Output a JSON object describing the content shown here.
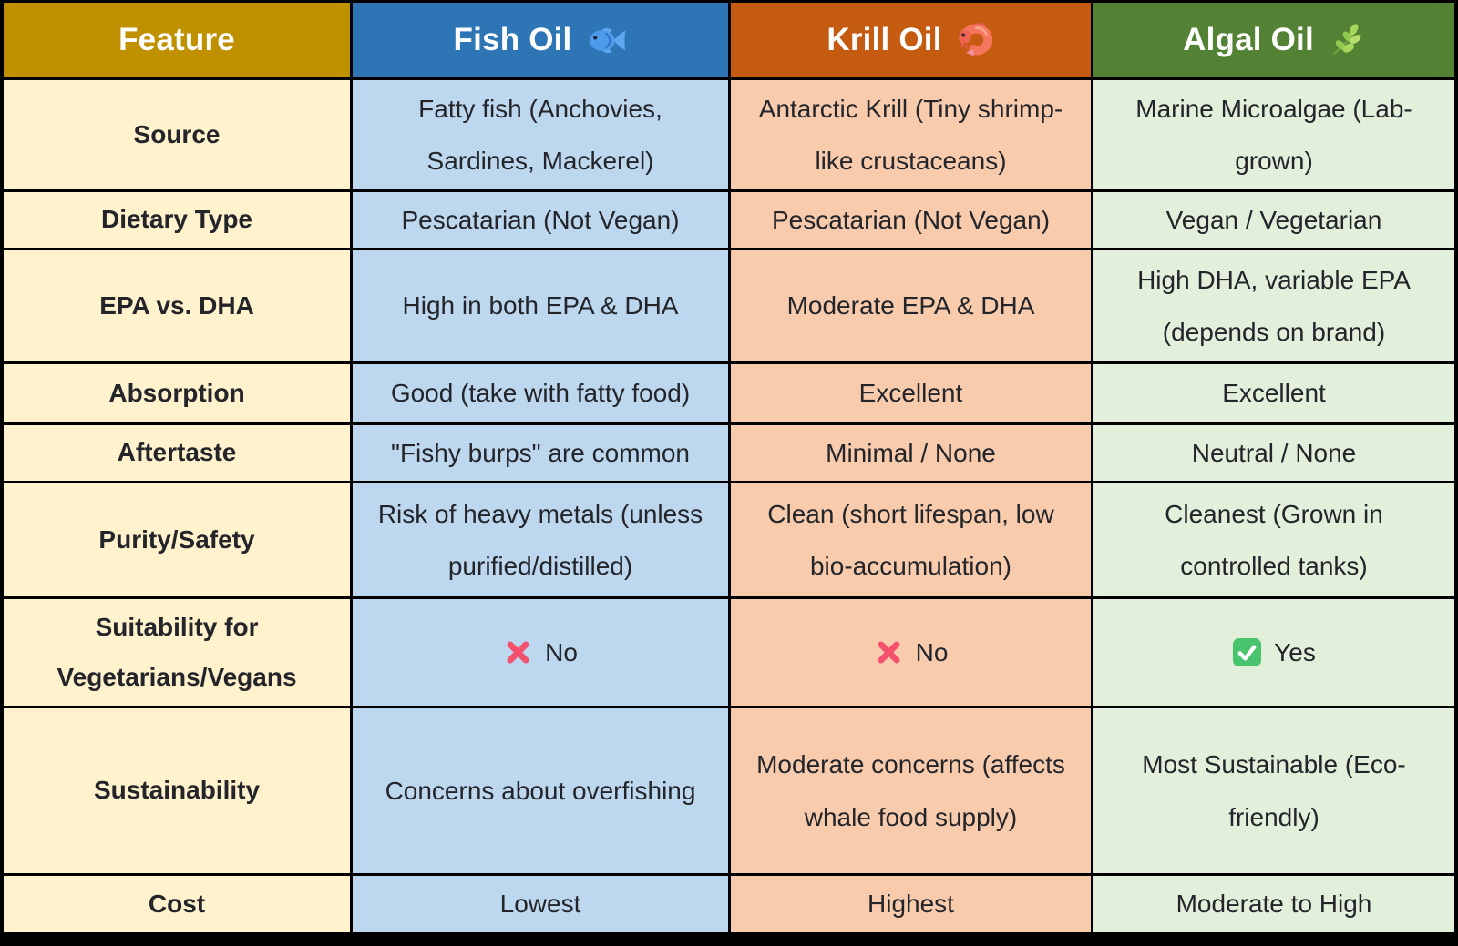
{
  "chart_data": {
    "type": "table",
    "columns": [
      {
        "id": "feature",
        "label": "Feature",
        "icon": null,
        "header_bg": "#BF9000",
        "cell_bg": "#FFF2CC"
      },
      {
        "id": "fish-oil",
        "label": "Fish Oil",
        "icon": "fish-icon",
        "header_bg": "#2E75B6",
        "cell_bg": "#BDD7EE"
      },
      {
        "id": "krill-oil",
        "label": "Krill Oil",
        "icon": "shrimp-icon",
        "header_bg": "#C55A11",
        "cell_bg": "#F8CBAD"
      },
      {
        "id": "algal-oil",
        "label": "Algal Oil",
        "icon": "herb-icon",
        "header_bg": "#548235",
        "cell_bg": "#E2EFDA"
      }
    ],
    "rows": [
      {
        "id": "source",
        "cells": [
          "Source",
          "Fatty fish (Anchovies, Sardines, Mackerel)",
          "Antarctic Krill (Tiny shrimp-like crustaceans)",
          "Marine Microalgae (Lab-grown)"
        ]
      },
      {
        "id": "dietary-type",
        "cells": [
          "Dietary Type",
          "Pescatarian (Not Vegan)",
          "Pescatarian (Not Vegan)",
          "Vegan / Vegetarian"
        ]
      },
      {
        "id": "epa-vs-dha",
        "cells": [
          "EPA vs. DHA",
          "High in both EPA & DHA",
          "Moderate EPA & DHA",
          "High DHA, variable EPA (depends on brand)"
        ]
      },
      {
        "id": "absorption",
        "cells": [
          "Absorption",
          "Good (take with fatty food)",
          "Excellent",
          "Excellent"
        ]
      },
      {
        "id": "aftertaste",
        "cells": [
          "Aftertaste",
          "\"Fishy burps\" are common",
          "Minimal / None",
          "Neutral / None"
        ]
      },
      {
        "id": "purity-safety",
        "cells": [
          "Purity/Safety",
          "Risk of heavy metals (unless purified/distilled)",
          "Clean (short lifespan, low bio-accumulation)",
          "Cleanest (Grown in controlled tanks)"
        ]
      },
      {
        "id": "suitability",
        "cells": [
          "Suitability for Vegetarians/Vegans",
          {
            "icon": "cross-mark-icon",
            "text": "No"
          },
          {
            "icon": "cross-mark-icon",
            "text": "No"
          },
          {
            "icon": "check-mark-icon",
            "text": "Yes"
          }
        ]
      },
      {
        "id": "sustainability",
        "cells": [
          "Sustainability",
          "Concerns about overfishing",
          "Moderate concerns (affects whale food supply)",
          "Most Sustainable (Eco-friendly)"
        ]
      },
      {
        "id": "cost",
        "cells": [
          "Cost",
          "Lowest",
          "Highest",
          "Moderate to High"
        ]
      }
    ],
    "status_colors": {
      "cross": "#F4516F",
      "check": "#48C46E"
    },
    "icon_colors": {
      "fish": "#4D9BEB",
      "shrimp": "#F4765C",
      "herb": "#8FC94E"
    },
    "layout": {
      "border_color": "#000000",
      "grid": "on",
      "header_row": true
    }
  }
}
